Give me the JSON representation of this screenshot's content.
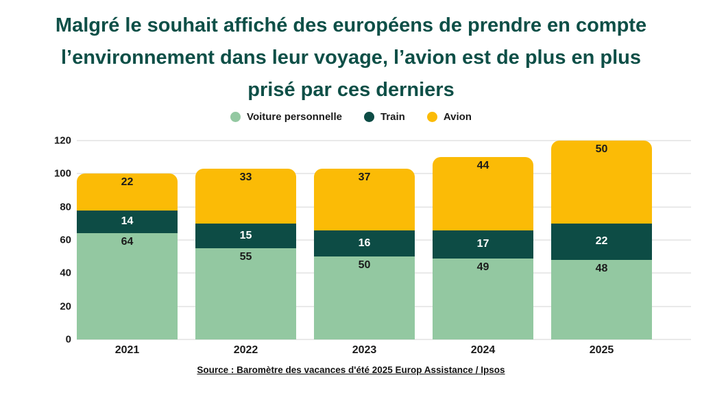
{
  "title_lines": [
    "Malgré le souhait affiché des européens de prendre en compte",
    "l’environnement dans leur voyage, l’avion est de plus en plus",
    "prisé par ces derniers"
  ],
  "chart_data": {
    "type": "bar",
    "stacked": true,
    "title": "Malgré le souhait affiché des européens de prendre en compte l’environnement dans leur voyage, l’avion est de plus en plus prisé par ces derniers",
    "categories": [
      "2021",
      "2022",
      "2023",
      "2024",
      "2025"
    ],
    "series": [
      {
        "name": "Voiture personnelle",
        "color": "#93c8a1",
        "label_color": "#1b1b1b",
        "label_position": "top",
        "values": [
          64,
          55,
          50,
          49,
          48
        ]
      },
      {
        "name": "Train",
        "color": "#0d4c45",
        "label_color": "#ffffff",
        "label_position": "middle",
        "values": [
          14,
          15,
          16,
          17,
          22
        ]
      },
      {
        "name": "Avion",
        "color": "#fbbb06",
        "label_color": "#1b1b1b",
        "label_position": "top",
        "values": [
          22,
          33,
          37,
          44,
          50
        ]
      }
    ],
    "ylim": [
      0,
      120
    ],
    "yticks": [
      0,
      20,
      40,
      60,
      80,
      100,
      120
    ],
    "grid": true,
    "legend_position": "top"
  },
  "source": "Source : Baromètre des vacances d'été 2025 Europ Assistance / Ipsos",
  "colors": {
    "title": "#0e4f47",
    "grid": "#e9e9e9",
    "text": "#1a1a1a",
    "background": "#ffffff"
  }
}
